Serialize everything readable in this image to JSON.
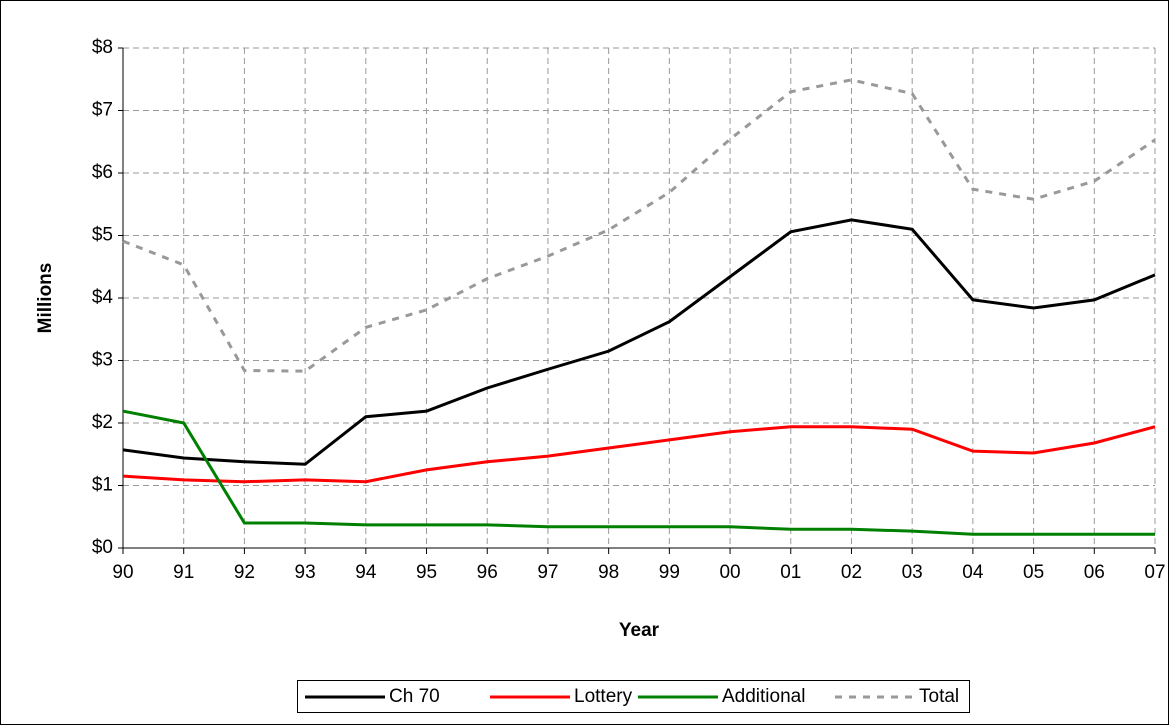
{
  "chart_data": {
    "type": "line",
    "x_label": "Year",
    "y_label": "Millions",
    "categories": [
      "90",
      "91",
      "92",
      "93",
      "94",
      "95",
      "96",
      "97",
      "98",
      "99",
      "00",
      "01",
      "02",
      "03",
      "04",
      "05",
      "06",
      "07"
    ],
    "series": [
      {
        "name": "Ch 70",
        "color": "#000000",
        "dash": false,
        "values": [
          1.57,
          1.44,
          1.38,
          1.34,
          2.1,
          2.19,
          2.56,
          2.86,
          3.15,
          3.62,
          4.34,
          5.06,
          5.25,
          5.1,
          3.97,
          3.84,
          3.97,
          4.37
        ]
      },
      {
        "name": "Lottery",
        "color": "#ff0000",
        "dash": false,
        "values": [
          1.15,
          1.09,
          1.06,
          1.09,
          1.06,
          1.25,
          1.38,
          1.47,
          1.6,
          1.73,
          1.86,
          1.94,
          1.94,
          1.9,
          1.55,
          1.52,
          1.68,
          1.94
        ]
      },
      {
        "name": "Additional",
        "color": "#008000",
        "dash": false,
        "values": [
          2.19,
          2.0,
          0.4,
          0.4,
          0.37,
          0.37,
          0.37,
          0.34,
          0.34,
          0.34,
          0.34,
          0.3,
          0.3,
          0.27,
          0.22,
          0.22,
          0.22,
          0.22
        ]
      },
      {
        "name": "Total",
        "color": "#999999",
        "dash": true,
        "values": [
          4.91,
          4.53,
          2.84,
          2.83,
          3.53,
          3.81,
          4.31,
          4.67,
          5.09,
          5.69,
          6.54,
          7.3,
          7.49,
          7.27,
          5.74,
          5.58,
          5.87,
          6.53
        ]
      }
    ],
    "ylim": [
      0,
      8
    ],
    "yticks": [
      {
        "value": 0,
        "label": "$0"
      },
      {
        "value": 1,
        "label": "$1"
      },
      {
        "value": 2,
        "label": "$2"
      },
      {
        "value": 3,
        "label": "$3"
      },
      {
        "value": 4,
        "label": "$4"
      },
      {
        "value": 5,
        "label": "$5"
      },
      {
        "value": 6,
        "label": "$6"
      },
      {
        "value": 7,
        "label": "$7"
      },
      {
        "value": 8,
        "label": "$8"
      }
    ],
    "grid": true,
    "legend": "bottom"
  }
}
